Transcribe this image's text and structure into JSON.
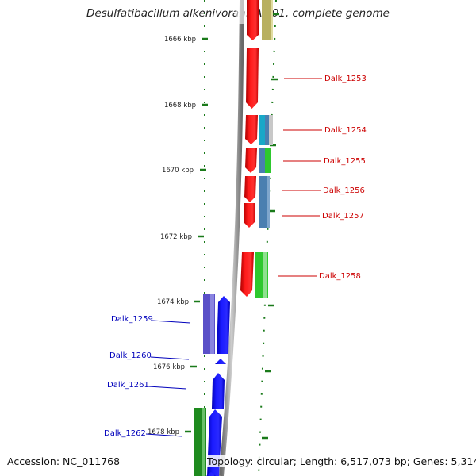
{
  "title": "Desulfatibacillum alkenivorans AK-01, complete genome",
  "footer": {
    "accession": "Accession: NC_011768",
    "topology": "Topology: circular; Length: 6,517,073 bp; Genes: 5,314"
  },
  "colors": {
    "forward_strand_genes": "#ee1111",
    "reverse_strand_genes": "#1a1aee",
    "forward_label": "#cc0000",
    "reverse_label": "#0000bb",
    "backbone": "#888888",
    "tick_marks": "#1a7a1a"
  },
  "scale_ticks": [
    {
      "kbp": 1666,
      "label": "1666 kbp"
    },
    {
      "kbp": 1668,
      "label": "1668 kbp"
    },
    {
      "kbp": 1670,
      "label": "1670 kbp"
    },
    {
      "kbp": 1672,
      "label": "1672 kbp"
    },
    {
      "kbp": 1674,
      "label": "1674 kbp"
    },
    {
      "kbp": 1676,
      "label": "1676 kbp"
    },
    {
      "kbp": 1678,
      "label": "1678 kbp"
    }
  ],
  "genes": [
    {
      "strand": "forward",
      "label": ""
    },
    {
      "strand": "forward",
      "label": "Dalk_1253"
    },
    {
      "strand": "forward",
      "label": "Dalk_1254"
    },
    {
      "strand": "forward",
      "label": "Dalk_1255"
    },
    {
      "strand": "forward",
      "label": "Dalk_1256"
    },
    {
      "strand": "forward",
      "label": "Dalk_1257"
    },
    {
      "strand": "forward",
      "label": "Dalk_1258"
    },
    {
      "strand": "reverse",
      "label": "Dalk_1259"
    },
    {
      "strand": "reverse",
      "label": "Dalk_1260"
    },
    {
      "strand": "reverse",
      "label": "Dalk_1261"
    },
    {
      "strand": "reverse",
      "label": "Dalk_1262"
    },
    {
      "strand": "reverse",
      "label": ""
    }
  ]
}
